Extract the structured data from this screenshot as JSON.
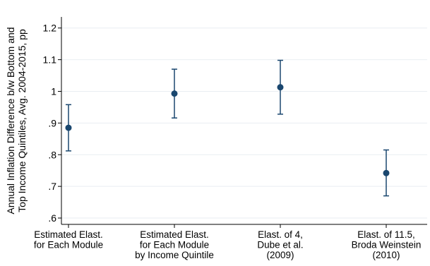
{
  "chart_data": {
    "type": "scatter",
    "title": "",
    "xlabel": "",
    "ylabel": [
      "Annual Inflation Difference b/w Bottom and",
      "Top Income Quintiles, Avg. 2004-2015, pp"
    ],
    "ylim": [
      0.58,
      1.235
    ],
    "yticks": [
      0.6,
      0.7,
      0.8,
      0.9,
      1.0,
      1.1,
      1.2
    ],
    "ytick_labels": [
      ".6",
      ".7",
      ".8",
      ".9",
      "1",
      "1.1",
      "1.2"
    ],
    "grid": true,
    "marker_color": "#1a476f",
    "categories": [
      [
        "Estimated Elast.",
        "for Each Module"
      ],
      [
        "Estimated Elast.",
        "for Each Module",
        "by Income Quintile"
      ],
      [
        "Elast. of 4,",
        "Dube et al.",
        "(2009)"
      ],
      [
        "Elast. of 11.5,",
        "Broda Weinstein",
        "(2010)"
      ]
    ],
    "points": [
      {
        "y": 0.885,
        "lo": 0.812,
        "hi": 0.958
      },
      {
        "y": 0.993,
        "lo": 0.916,
        "hi": 1.07
      },
      {
        "y": 1.013,
        "lo": 0.928,
        "hi": 1.098
      },
      {
        "y": 0.742,
        "lo": 0.67,
        "hi": 0.815
      }
    ]
  }
}
